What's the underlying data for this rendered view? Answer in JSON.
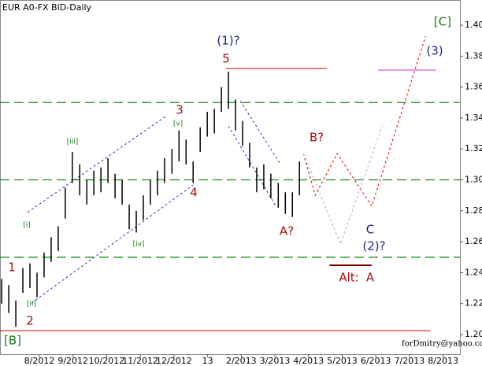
{
  "chart_data": {
    "type": "ohlc",
    "title": "EUR A0-FX BID-Daily",
    "footer": "forDmitry@yahoo.com",
    "bar_color": "#000000",
    "x": [
      6.88,
      7.09,
      7.3,
      7.51,
      7.72,
      7.93,
      8.14,
      8.35,
      8.56,
      8.77,
      8.98,
      9.2,
      9.41,
      9.62,
      9.83,
      10.04,
      10.25,
      10.46,
      10.67,
      10.88,
      11.09,
      11.3,
      11.51,
      11.72,
      11.94,
      12.15,
      12.36,
      12.57,
      12.78,
      12.99,
      13.2,
      13.41,
      13.62,
      13.83,
      14.04,
      14.25,
      14.46,
      14.67,
      14.88,
      15.1,
      15.31,
      15.52,
      15.73
    ],
    "high": [
      1.236,
      1.232,
      1.222,
      1.243,
      1.246,
      1.24,
      1.253,
      1.263,
      1.27,
      1.295,
      1.318,
      1.31,
      1.3,
      1.306,
      1.308,
      1.314,
      1.304,
      1.3,
      1.284,
      1.28,
      1.29,
      1.3,
      1.306,
      1.314,
      1.32,
      1.332,
      1.326,
      1.312,
      1.334,
      1.344,
      1.346,
      1.36,
      1.37,
      1.352,
      1.338,
      1.324,
      1.308,
      1.31,
      1.304,
      1.298,
      1.292,
      1.292,
      1.312
    ],
    "low": [
      1.22,
      1.214,
      1.205,
      1.227,
      1.23,
      1.224,
      1.237,
      1.247,
      1.254,
      1.275,
      1.298,
      1.29,
      1.284,
      1.29,
      1.292,
      1.298,
      1.288,
      1.284,
      1.268,
      1.266,
      1.274,
      1.284,
      1.29,
      1.298,
      1.304,
      1.312,
      1.31,
      1.298,
      1.318,
      1.328,
      1.33,
      1.344,
      1.346,
      1.332,
      1.322,
      1.308,
      1.292,
      1.294,
      1.288,
      1.282,
      1.278,
      1.276,
      1.29
    ],
    "xlim": [
      6.83,
      20.5
    ],
    "ylim": [
      1.1873,
      1.4163
    ],
    "xticks": [
      {
        "value": 8,
        "label": "8/2012"
      },
      {
        "value": 9,
        "label": "9/2012"
      },
      {
        "value": 10,
        "label": "10/2012"
      },
      {
        "value": 11,
        "label": "11/2012"
      },
      {
        "value": 12,
        "label": "12/2012"
      },
      13,
      {
        "value": 14,
        "label": "2/2013"
      },
      {
        "value": 15,
        "label": "3/2013"
      },
      {
        "value": 16,
        "label": "4/2013"
      },
      {
        "value": 17,
        "label": "5/2013"
      },
      {
        "value": 18,
        "label": "6/2013"
      },
      {
        "value": 19,
        "label": "7/2013"
      },
      {
        "value": 20,
        "label": "8/2013"
      }
    ],
    "yticks": [
      {
        "value": 1.2,
        "label": "1.20"
      },
      1.22,
      1.24,
      1.26,
      1.28,
      {
        "value": 1.3,
        "label": "1.30"
      },
      1.32,
      1.34,
      1.36,
      1.38,
      {
        "value": 1.4,
        "label": "1.40"
      }
    ],
    "levels": [
      {
        "value": 1.35,
        "color": "#1a8a1a"
      },
      {
        "value": 1.3,
        "color": "#1a8a1a"
      },
      {
        "value": 1.25,
        "color": "#1a8a1a"
      }
    ],
    "lines": [
      {
        "x": [
          13.55,
          16.55
        ],
        "y": [
          1.372,
          1.372
        ],
        "color": "#cc0000",
        "dash": "none",
        "width": 1
      },
      {
        "x": [
          6.83,
          19.62
        ],
        "y": [
          1.2025,
          1.2025
        ],
        "color": "#cc0000",
        "dash": "none",
        "width": 1
      },
      {
        "x": [
          18.07,
          19.78
        ],
        "y": [
          1.371,
          1.371
        ],
        "color": "#cc33cc",
        "dash": "none",
        "width": 1
      },
      {
        "x": [
          16.62,
          17.88
        ],
        "y": [
          1.2448,
          1.2448
        ],
        "color": "#800000",
        "dash": "none",
        "width": 2
      },
      {
        "x": [
          7.65,
          11.75
        ],
        "y": [
          1.279,
          1.341
        ],
        "color": "#3333cc",
        "dash": "3,3",
        "width": 1
      },
      {
        "x": [
          7.77,
          12.57
        ],
        "y": [
          1.2204,
          1.2967
        ],
        "color": "#3333cc",
        "dash": "3,3",
        "width": 1
      },
      {
        "x": [
          13.97,
          15.14
        ],
        "y": [
          1.3511,
          1.311
        ],
        "color": "#3333cc",
        "dash": "3,3",
        "width": 1
      },
      {
        "x": [
          13.62,
          15.03
        ],
        "y": [
          1.3349,
          1.283
        ],
        "color": "#3333cc",
        "dash": "3,3",
        "width": 1
      },
      {
        "x": [
          15.85,
          16.2,
          16.85,
          17.88,
          19.48
        ],
        "y": [
          1.317,
          1.29,
          1.317,
          1.283,
          1.393
        ],
        "color": "#ee2222",
        "dash": "3,3",
        "width": 1.2
      },
      {
        "x": [
          15.85,
          16.95,
          18.19
        ],
        "y": [
          1.317,
          1.2585,
          1.3349
        ],
        "color": "#bbbbbb",
        "dash": "3,3",
        "width": 1.2
      }
    ],
    "annotations": [
      {
        "text": "(1)?",
        "color": "#1a237e"
      },
      {
        "text": "5",
        "color": "#a01010"
      },
      {
        "text": "3",
        "color": "#a01010"
      },
      {
        "text": "[v]",
        "color": "#1a7a1a"
      },
      {
        "text": "[iii]",
        "color": "#1a7a1a"
      },
      {
        "text": "[i]",
        "color": "#1a7a1a"
      },
      {
        "text": "[ii]",
        "color": "#1a7a1a"
      },
      {
        "text": "1",
        "color": "#a01010"
      },
      {
        "text": "2",
        "color": "#a01010"
      },
      {
        "text": "[iv]",
        "color": "#1a7a1a"
      },
      {
        "text": "4",
        "color": "#a01010"
      },
      {
        "text": "B?",
        "color": "#a01010"
      },
      {
        "text": "A?",
        "color": "#a01010"
      },
      {
        "text": "C",
        "color": "#1a237e"
      },
      {
        "text": "(2)?",
        "color": "#1a237e"
      },
      {
        "text": "Alt:",
        "color": "#a01010"
      },
      {
        "text": "A",
        "color": "#a01010"
      },
      {
        "text": "(3)",
        "color": "#1a237e"
      },
      {
        "text": "[C]",
        "color": "#1a7a1a"
      },
      {
        "text": "[B]",
        "color": "#1a7a1a"
      }
    ]
  }
}
